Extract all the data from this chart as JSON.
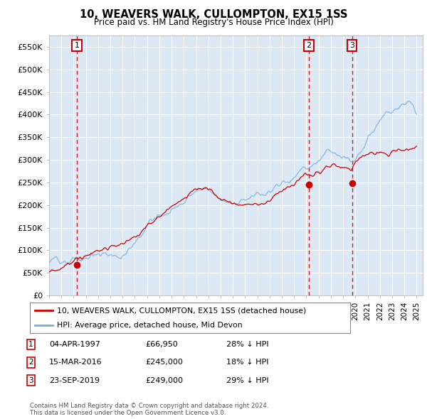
{
  "title": "10, WEAVERS WALK, CULLOMPTON, EX15 1SS",
  "subtitle": "Price paid vs. HM Land Registry's House Price Index (HPI)",
  "plot_bg_color": "#dce9f5",
  "ylim": [
    0,
    575000
  ],
  "yticks": [
    0,
    50000,
    100000,
    150000,
    200000,
    250000,
    300000,
    350000,
    400000,
    450000,
    500000,
    550000
  ],
  "ytick_labels": [
    "£0",
    "£50K",
    "£100K",
    "£150K",
    "£200K",
    "£250K",
    "£300K",
    "£350K",
    "£400K",
    "£450K",
    "£500K",
    "£550K"
  ],
  "xlim_start": 1995.0,
  "xlim_end": 2025.5,
  "legend_line1": "10, WEAVERS WALK, CULLOMPTON, EX15 1SS (detached house)",
  "legend_line2": "HPI: Average price, detached house, Mid Devon",
  "sales": [
    {
      "num": 1,
      "date_num": 1997.26,
      "price": 66950,
      "label": "04-APR-1997",
      "price_str": "£66,950",
      "pct": "28% ↓ HPI"
    },
    {
      "num": 2,
      "date_num": 2016.2,
      "price": 245000,
      "label": "15-MAR-2016",
      "price_str": "£245,000",
      "pct": "18% ↓ HPI"
    },
    {
      "num": 3,
      "date_num": 2019.73,
      "price": 249000,
      "label": "23-SEP-2019",
      "price_str": "£249,000",
      "pct": "29% ↓ HPI"
    }
  ],
  "red_line_color": "#cc0000",
  "blue_line_color": "#7aadda",
  "dashed_line_color": "#dd0000",
  "footer": "Contains HM Land Registry data © Crown copyright and database right 2024.\nThis data is licensed under the Open Government Licence v3.0.",
  "grid_color": "#ffffff",
  "marker_color": "#cc0000",
  "box_color": "#cc0000",
  "hpi_anchors_t": [
    1995.0,
    1995.5,
    1996.0,
    1996.5,
    1997.0,
    1997.5,
    1998.0,
    1998.5,
    1999.0,
    1999.5,
    2000.0,
    2000.5,
    2001.0,
    2001.5,
    2002.0,
    2002.5,
    2003.0,
    2003.5,
    2004.0,
    2004.5,
    2005.0,
    2005.5,
    2006.0,
    2006.5,
    2007.0,
    2007.5,
    2008.0,
    2008.5,
    2009.0,
    2009.5,
    2010.0,
    2010.5,
    2011.0,
    2011.5,
    2012.0,
    2012.5,
    2013.0,
    2013.5,
    2014.0,
    2014.5,
    2015.0,
    2015.5,
    2016.0,
    2016.5,
    2017.0,
    2017.5,
    2018.0,
    2018.5,
    2019.0,
    2019.5,
    2020.0,
    2020.5,
    2021.0,
    2021.5,
    2022.0,
    2022.5,
    2023.0,
    2023.5,
    2024.0,
    2024.5,
    2025.0
  ],
  "hpi_anchors_p": [
    72000,
    73000,
    75000,
    78000,
    80000,
    82000,
    85000,
    88000,
    92000,
    96000,
    100000,
    105000,
    112000,
    120000,
    133000,
    148000,
    163000,
    175000,
    185000,
    192000,
    200000,
    210000,
    218000,
    228000,
    240000,
    248000,
    245000,
    235000,
    225000,
    218000,
    215000,
    212000,
    215000,
    218000,
    220000,
    222000,
    228000,
    235000,
    245000,
    255000,
    265000,
    278000,
    292000,
    305000,
    315000,
    322000,
    330000,
    338000,
    340000,
    342000,
    345000,
    355000,
    365000,
    385000,
    410000,
    430000,
    435000,
    440000,
    450000,
    455000,
    430000
  ],
  "prop_anchors_t": [
    1995.0,
    1996.0,
    1997.0,
    1997.26,
    1998.0,
    1999.0,
    2000.0,
    2001.0,
    2002.0,
    2003.0,
    2004.0,
    2005.0,
    2006.0,
    2007.0,
    2008.0,
    2009.0,
    2010.0,
    2011.0,
    2012.0,
    2013.0,
    2014.0,
    2015.0,
    2016.0,
    2016.2,
    2017.0,
    2018.0,
    2019.0,
    2019.73,
    2020.0,
    2021.0,
    2022.0,
    2023.0,
    2024.0,
    2025.0
  ],
  "prop_anchors_p": [
    52000,
    57000,
    63000,
    66950,
    70000,
    75000,
    82000,
    92000,
    108000,
    128000,
    148000,
    162000,
    175000,
    195000,
    195000,
    180000,
    178000,
    180000,
    182000,
    188000,
    200000,
    218000,
    240000,
    245000,
    255000,
    258000,
    248000,
    249000,
    262000,
    278000,
    295000,
    300000,
    295000,
    300000
  ]
}
